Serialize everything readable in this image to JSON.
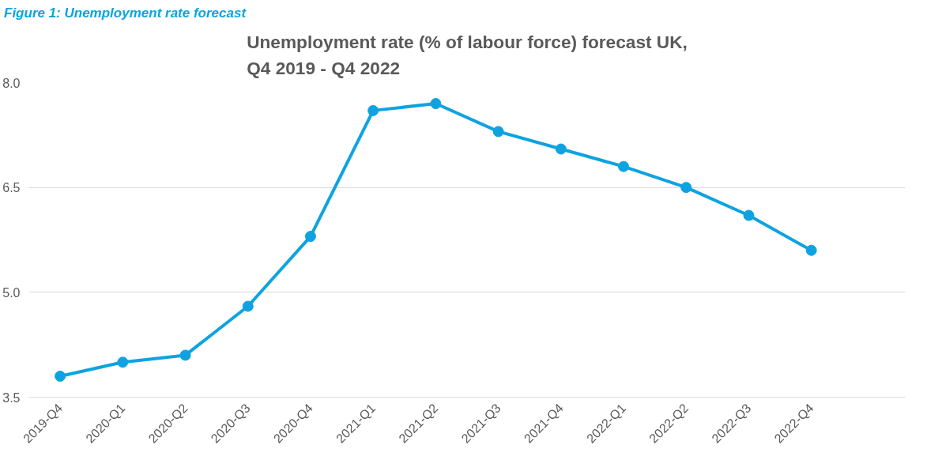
{
  "chart_data": {
    "type": "line",
    "title": "Unemployment rate (% of labour force) forecast UK,\nQ4 2019 - Q4 2022",
    "annotations": [
      "Figure 1: Unemployment rate forecast"
    ],
    "categories": [
      "2019-Q4",
      "2020-Q1",
      "2020-Q2",
      "2020-Q3",
      "2020-Q4",
      "2021-Q1",
      "2021-Q2",
      "2021-Q3",
      "2021-Q4",
      "2022-Q1",
      "2022-Q2",
      "2022-Q3",
      "2022-Q4",
      null
    ],
    "series": [
      {
        "color": "#0ea3e0",
        "values": [
          3.8,
          4.0,
          4.1,
          4.8,
          5.8,
          7.6,
          7.7,
          7.3,
          7.05,
          6.8,
          6.5,
          6.1,
          5.6,
          null
        ]
      }
    ],
    "ylim": [
      3.5,
      8.0
    ],
    "yticks": [
      {
        "value": 3.5,
        "label": "3.5"
      },
      {
        "value": 5.0,
        "label": "5.0"
      },
      {
        "value": 6.5,
        "label": "6.5"
      },
      {
        "value": 8.0,
        "label": "8.0"
      }
    ],
    "grid": "y",
    "marker": "circle",
    "line_style": "solid"
  }
}
